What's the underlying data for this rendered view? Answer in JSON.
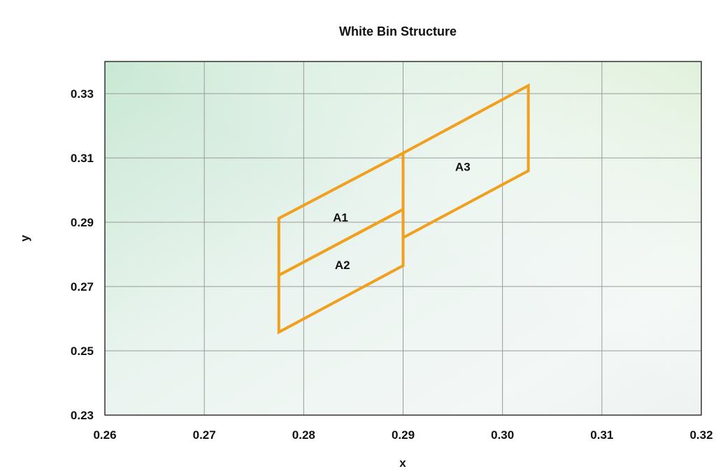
{
  "chart_data": {
    "type": "scatter",
    "title": "White Bin Structure",
    "xlabel": "x",
    "ylabel": "y",
    "xlim": [
      0.26,
      0.32
    ],
    "ylim": [
      0.23,
      0.34
    ],
    "xticks": [
      "0.26",
      "0.27",
      "0.28",
      "0.29",
      "0.30",
      "0.31",
      "0.32"
    ],
    "yticks": [
      "0.23",
      "0.25",
      "0.27",
      "0.29",
      "0.31",
      "0.33"
    ],
    "grid": true,
    "line_color": "#f0a01e",
    "regions": [
      {
        "label": "A1",
        "x": [
          0.2775,
          0.29,
          0.29,
          0.2775
        ],
        "y": [
          0.2735,
          0.294,
          0.3115,
          0.2912
        ],
        "label_at": [
          0.2837,
          0.2915
        ]
      },
      {
        "label": "A2",
        "x": [
          0.2775,
          0.29,
          0.29,
          0.2775
        ],
        "y": [
          0.2558,
          0.2765,
          0.294,
          0.2735
        ],
        "label_at": [
          0.2839,
          0.2767
        ]
      },
      {
        "label": "A3",
        "x": [
          0.29,
          0.3026,
          0.3026,
          0.29
        ],
        "y": [
          0.2852,
          0.306,
          0.3325,
          0.3115
        ],
        "label_at": [
          0.296,
          0.3073
        ]
      }
    ]
  }
}
